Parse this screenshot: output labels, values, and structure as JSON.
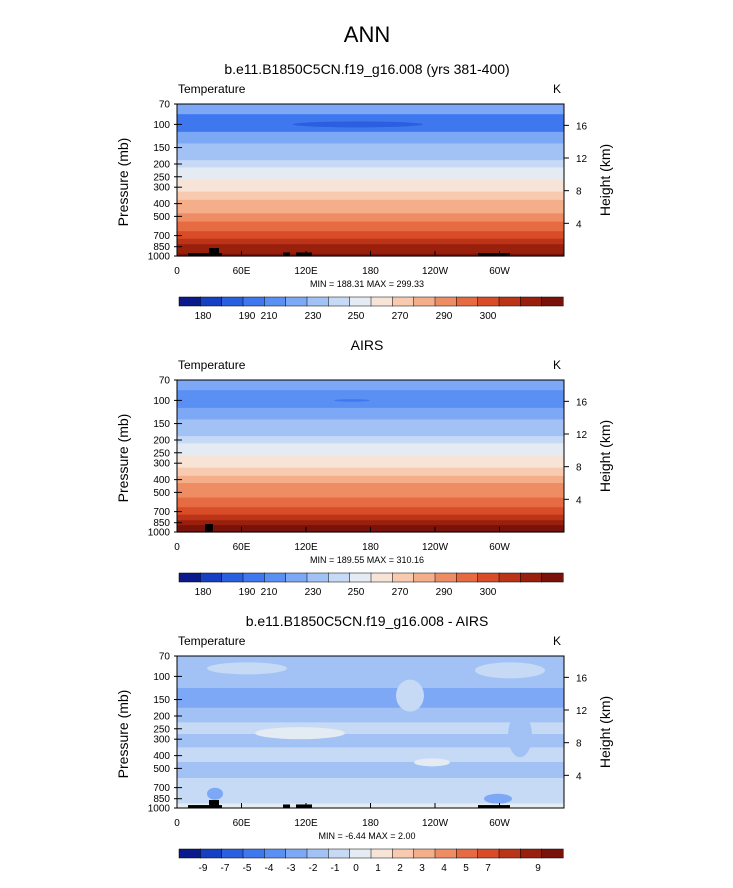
{
  "page_title": "ANN",
  "chart_data": [
    {
      "type": "heatmap",
      "title": "b.e11.B1850C5CN.f19_g16.008 (yrs 381-400)",
      "left_label": "Temperature",
      "right_label": "K",
      "ylabel": "Pressure (mb)",
      "ylabel_right": "Height (km)",
      "ylim": [
        1000,
        70
      ],
      "yticks": [
        70,
        100,
        150,
        200,
        250,
        300,
        400,
        500,
        700,
        850,
        1000
      ],
      "yticks_right": [
        16,
        12,
        8,
        4
      ],
      "xticks": [
        "0",
        "60E",
        "120E",
        "180",
        "120W",
        "60W"
      ],
      "stats": "MIN = 188.31  MAX = 299.33",
      "colorbar": {
        "labels": [
          "180",
          "190",
          "210",
          "230",
          "250",
          "270",
          "290",
          "300"
        ],
        "colors": [
          "#0a1a8c",
          "#1540c4",
          "#2a5fe0",
          "#3f78ee",
          "#5a90f4",
          "#7da8f6",
          "#a2c2f6",
          "#c6daf6",
          "#e4ebf2",
          "#f8e4d6",
          "#f8cbb0",
          "#f4ae8a",
          "#ee8c64",
          "#e66a42",
          "#d84c28",
          "#bc3418",
          "#9a200e",
          "#78120a"
        ]
      },
      "profile_rows": [
        {
          "p": 70,
          "c": 5
        },
        {
          "p": 100,
          "c": 3
        },
        {
          "p": 130,
          "c": 5
        },
        {
          "p": 150,
          "c": 6
        },
        {
          "p": 175,
          "c": 6
        },
        {
          "p": 200,
          "c": 7
        },
        {
          "p": 225,
          "c": 8
        },
        {
          "p": 250,
          "c": 8
        },
        {
          "p": 275,
          "c": 9
        },
        {
          "p": 300,
          "c": 9
        },
        {
          "p": 350,
          "c": 10
        },
        {
          "p": 400,
          "c": 11
        },
        {
          "p": 450,
          "c": 11
        },
        {
          "p": 500,
          "c": 12
        },
        {
          "p": 600,
          "c": 13
        },
        {
          "p": 700,
          "c": 14
        },
        {
          "p": 780,
          "c": 15
        },
        {
          "p": 850,
          "c": 16
        },
        {
          "p": 925,
          "c": 16
        },
        {
          "p": 1000,
          "c": 17
        }
      ]
    },
    {
      "type": "heatmap",
      "title": "AIRS",
      "left_label": "Temperature",
      "right_label": "K",
      "ylabel": "Pressure (mb)",
      "ylabel_right": "Height (km)",
      "ylim": [
        1000,
        70
      ],
      "yticks": [
        70,
        100,
        150,
        200,
        250,
        300,
        400,
        500,
        700,
        850,
        1000
      ],
      "yticks_right": [
        16,
        12,
        8,
        4
      ],
      "xticks": [
        "0",
        "60E",
        "120E",
        "180",
        "120W",
        "60W"
      ],
      "stats": "MIN = 189.55  MAX = 310.16",
      "colorbar": {
        "labels": [
          "180",
          "190",
          "210",
          "230",
          "250",
          "270",
          "290",
          "300"
        ],
        "colors": [
          "#0a1a8c",
          "#1540c4",
          "#2a5fe0",
          "#3f78ee",
          "#5a90f4",
          "#7da8f6",
          "#a2c2f6",
          "#c6daf6",
          "#e4ebf2",
          "#f8e4d6",
          "#f8cbb0",
          "#f4ae8a",
          "#ee8c64",
          "#e66a42",
          "#d84c28",
          "#bc3418",
          "#9a200e",
          "#78120a"
        ]
      },
      "profile_rows": [
        {
          "p": 70,
          "c": 5
        },
        {
          "p": 100,
          "c": 4
        },
        {
          "p": 130,
          "c": 5
        },
        {
          "p": 150,
          "c": 6
        },
        {
          "p": 175,
          "c": 6
        },
        {
          "p": 200,
          "c": 7
        },
        {
          "p": 225,
          "c": 8
        },
        {
          "p": 250,
          "c": 8
        },
        {
          "p": 275,
          "c": 9
        },
        {
          "p": 300,
          "c": 9
        },
        {
          "p": 350,
          "c": 10
        },
        {
          "p": 400,
          "c": 11
        },
        {
          "p": 450,
          "c": 12
        },
        {
          "p": 500,
          "c": 12
        },
        {
          "p": 600,
          "c": 13
        },
        {
          "p": 700,
          "c": 14
        },
        {
          "p": 780,
          "c": 15
        },
        {
          "p": 850,
          "c": 16
        },
        {
          "p": 925,
          "c": 17
        },
        {
          "p": 1000,
          "c": 17
        }
      ]
    },
    {
      "type": "heatmap",
      "title": "b.e11.B1850C5CN.f19_g16.008 - AIRS",
      "left_label": "Temperature",
      "right_label": "K",
      "ylabel": "Pressure (mb)",
      "ylabel_right": "Height (km)",
      "ylim": [
        1000,
        70
      ],
      "yticks": [
        70,
        100,
        150,
        200,
        250,
        300,
        400,
        500,
        700,
        850,
        1000
      ],
      "yticks_right": [
        16,
        12,
        8,
        4
      ],
      "xticks": [
        "0",
        "60E",
        "120E",
        "180",
        "120W",
        "60W"
      ],
      "stats": "MIN = -6.44  MAX =  2.00",
      "colorbar": {
        "labels": [
          "-9",
          "-7",
          "-5",
          "-4",
          "-3",
          "-2",
          "-1",
          "0",
          "1",
          "2",
          "3",
          "4",
          "5",
          "7",
          "9"
        ],
        "colors": [
          "#0a1a8c",
          "#1540c4",
          "#2a5fe0",
          "#3f78ee",
          "#5a90f4",
          "#7da8f6",
          "#a2c2f6",
          "#c6daf6",
          "#e4ebf2",
          "#f8e4d6",
          "#f8cbb0",
          "#f4ae8a",
          "#ee8c64",
          "#e66a42",
          "#d84c28",
          "#bc3418",
          "#9a200e",
          "#78120a"
        ]
      },
      "profile_rows": [
        {
          "p": 70,
          "c": 6
        },
        {
          "p": 100,
          "c": 6
        },
        {
          "p": 150,
          "c": 5
        },
        {
          "p": 200,
          "c": 6
        },
        {
          "p": 250,
          "c": 7
        },
        {
          "p": 300,
          "c": 6
        },
        {
          "p": 400,
          "c": 7
        },
        {
          "p": 500,
          "c": 6
        },
        {
          "p": 700,
          "c": 7
        },
        {
          "p": 850,
          "c": 7
        },
        {
          "p": 1000,
          "c": 8
        }
      ]
    }
  ]
}
